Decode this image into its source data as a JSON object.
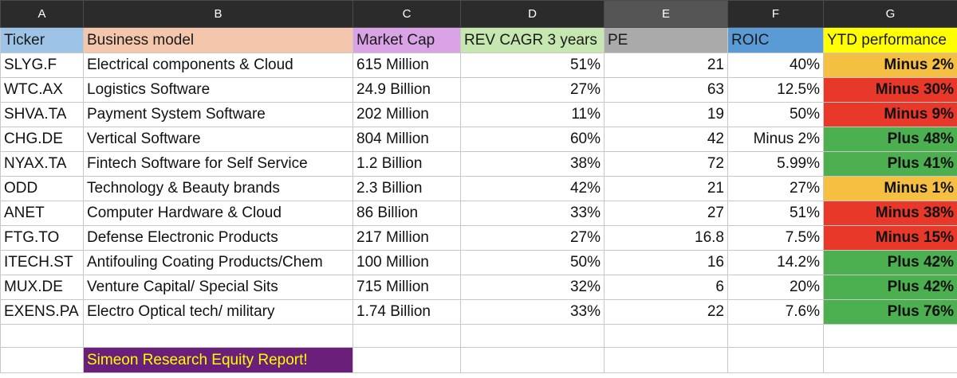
{
  "column_letters": [
    "A",
    "B",
    "C",
    "D",
    "E",
    "F",
    "G"
  ],
  "headers": [
    "Ticker",
    "Business model",
    "Market Cap",
    "REV CAGR 3 years",
    "PE",
    "ROIC",
    "YTD performance"
  ],
  "header_colors": [
    "#9dc3e6",
    "#f4c7ac",
    "#d9a3e6",
    "#c6e8b0",
    "#aaaaaa",
    "#5b9bd5",
    "#ffff00"
  ],
  "rows": [
    {
      "ticker": "SLYG.F",
      "model": "Electrical components & Cloud",
      "cap": "615 Million",
      "cagr": "51%",
      "pe": "21",
      "roic": "40%",
      "ytd": "Minus 2%",
      "ytd_color": "#f5bf42"
    },
    {
      "ticker": "WTC.AX",
      "model": "Logistics Software",
      "cap": "24.9 Billion",
      "cagr": "27%",
      "pe": "63",
      "roic": "12.5%",
      "ytd": "Minus 30%",
      "ytd_color": "#e8382a"
    },
    {
      "ticker": "SHVA.TA",
      "model": "Payment System Software",
      "cap": "202 Million",
      "cagr": "11%",
      "pe": "19",
      "roic": "50%",
      "ytd": "Minus 9%",
      "ytd_color": "#e8382a"
    },
    {
      "ticker": "CHG.DE",
      "model": "Vertical Software",
      "cap": "804 Million",
      "cagr": "60%",
      "pe": "42",
      "roic": "Minus 2%",
      "ytd": "Plus 48%",
      "ytd_color": "#4caf50"
    },
    {
      "ticker": "NYAX.TA",
      "model": "Fintech Software for Self Service",
      "cap": "1.2 Billion",
      "cagr": "38%",
      "pe": "72",
      "roic": "5.99%",
      "ytd": "Plus 41%",
      "ytd_color": "#4caf50"
    },
    {
      "ticker": "ODD",
      "model": "Technology & Beauty brands",
      "cap": "2.3 Billion",
      "cagr": "42%",
      "pe": "21",
      "roic": "27%",
      "ytd": "Minus 1%",
      "ytd_color": "#f5bf42"
    },
    {
      "ticker": "ANET",
      "model": "Computer Hardware & Cloud",
      "cap": "86 Billion",
      "cagr": "33%",
      "pe": "27",
      "roic": "51%",
      "ytd": "Minus 38%",
      "ytd_color": "#e8382a"
    },
    {
      "ticker": "FTG.TO",
      "model": "Defense Electronic Products",
      "cap": "217 Million",
      "cagr": "27%",
      "pe": "16.8",
      "roic": "7.5%",
      "ytd": "Minus 15%",
      "ytd_color": "#e8382a"
    },
    {
      "ticker": "ITECH.ST",
      "model": "Antifouling Coating Products/Chem",
      "cap": "100 Million",
      "cagr": "50%",
      "pe": "16",
      "roic": "14.2%",
      "ytd": "Plus 42%",
      "ytd_color": "#4caf50"
    },
    {
      "ticker": "MUX.DE",
      "model": "Venture Capital/ Special Sits",
      "cap": "715 Million",
      "cagr": "32%",
      "pe": "6",
      "roic": "20%",
      "ytd": "Plus 42%",
      "ytd_color": "#4caf50"
    },
    {
      "ticker": "EXENS.PA",
      "model": "Electro Optical tech/ military",
      "cap": "1.74 Billion",
      "cagr": "33%",
      "pe": "22",
      "roic": "7.6%",
      "ytd": "Plus 76%",
      "ytd_color": "#4caf50"
    }
  ],
  "footer_label": "Simeon Research Equity Report!",
  "footer_bg": "#6a1f7a",
  "footer_color": "#ffff00"
}
